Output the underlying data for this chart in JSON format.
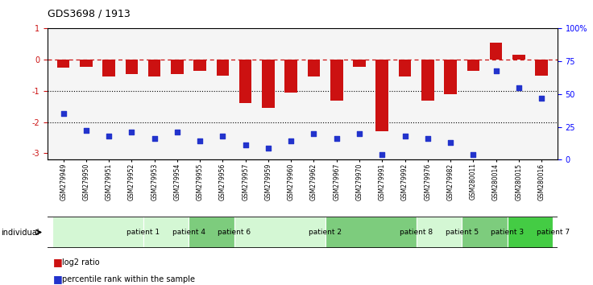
{
  "title": "GDS3698 / 1913",
  "samples": [
    "GSM279949",
    "GSM279950",
    "GSM279951",
    "GSM279952",
    "GSM279953",
    "GSM279954",
    "GSM279955",
    "GSM279956",
    "GSM279957",
    "GSM279959",
    "GSM279960",
    "GSM279962",
    "GSM279967",
    "GSM279970",
    "GSM279991",
    "GSM279992",
    "GSM279976",
    "GSM279982",
    "GSM280011",
    "GSM280014",
    "GSM280015",
    "GSM280016"
  ],
  "log2_ratio": [
    -0.25,
    -0.22,
    -0.55,
    -0.45,
    -0.55,
    -0.45,
    -0.35,
    -0.5,
    -1.4,
    -1.55,
    -1.05,
    -0.55,
    -1.3,
    -0.22,
    -2.3,
    -0.55,
    -1.3,
    -1.1,
    -0.35,
    0.55,
    0.15,
    -0.5
  ],
  "percentile_rank": [
    35,
    22,
    18,
    21,
    16,
    21,
    14,
    18,
    11,
    9,
    14,
    20,
    16,
    20,
    4,
    18,
    16,
    13,
    4,
    68,
    55,
    47
  ],
  "patients": [
    {
      "label": "patient 1",
      "start": 0,
      "end": 4,
      "color": "#d4f7d4"
    },
    {
      "label": "patient 4",
      "start": 4,
      "end": 6,
      "color": "#d4f7d4"
    },
    {
      "label": "patient 6",
      "start": 6,
      "end": 8,
      "color": "#7dcc7d"
    },
    {
      "label": "patient 2",
      "start": 8,
      "end": 12,
      "color": "#d4f7d4"
    },
    {
      "label": "patient 8",
      "start": 12,
      "end": 16,
      "color": "#7dcc7d"
    },
    {
      "label": "patient 5",
      "start": 16,
      "end": 18,
      "color": "#d4f7d4"
    },
    {
      "label": "patient 3",
      "start": 18,
      "end": 20,
      "color": "#7dcc7d"
    },
    {
      "label": "patient 7",
      "start": 20,
      "end": 22,
      "color": "#44cc44"
    }
  ],
  "ylim_left": [
    -3.2,
    1.0
  ],
  "ylim_right": [
    0,
    100
  ],
  "bar_color": "#cc1111",
  "dot_color": "#2233cc",
  "hline_color": "#cc1111",
  "bg_color": "#ffffff"
}
